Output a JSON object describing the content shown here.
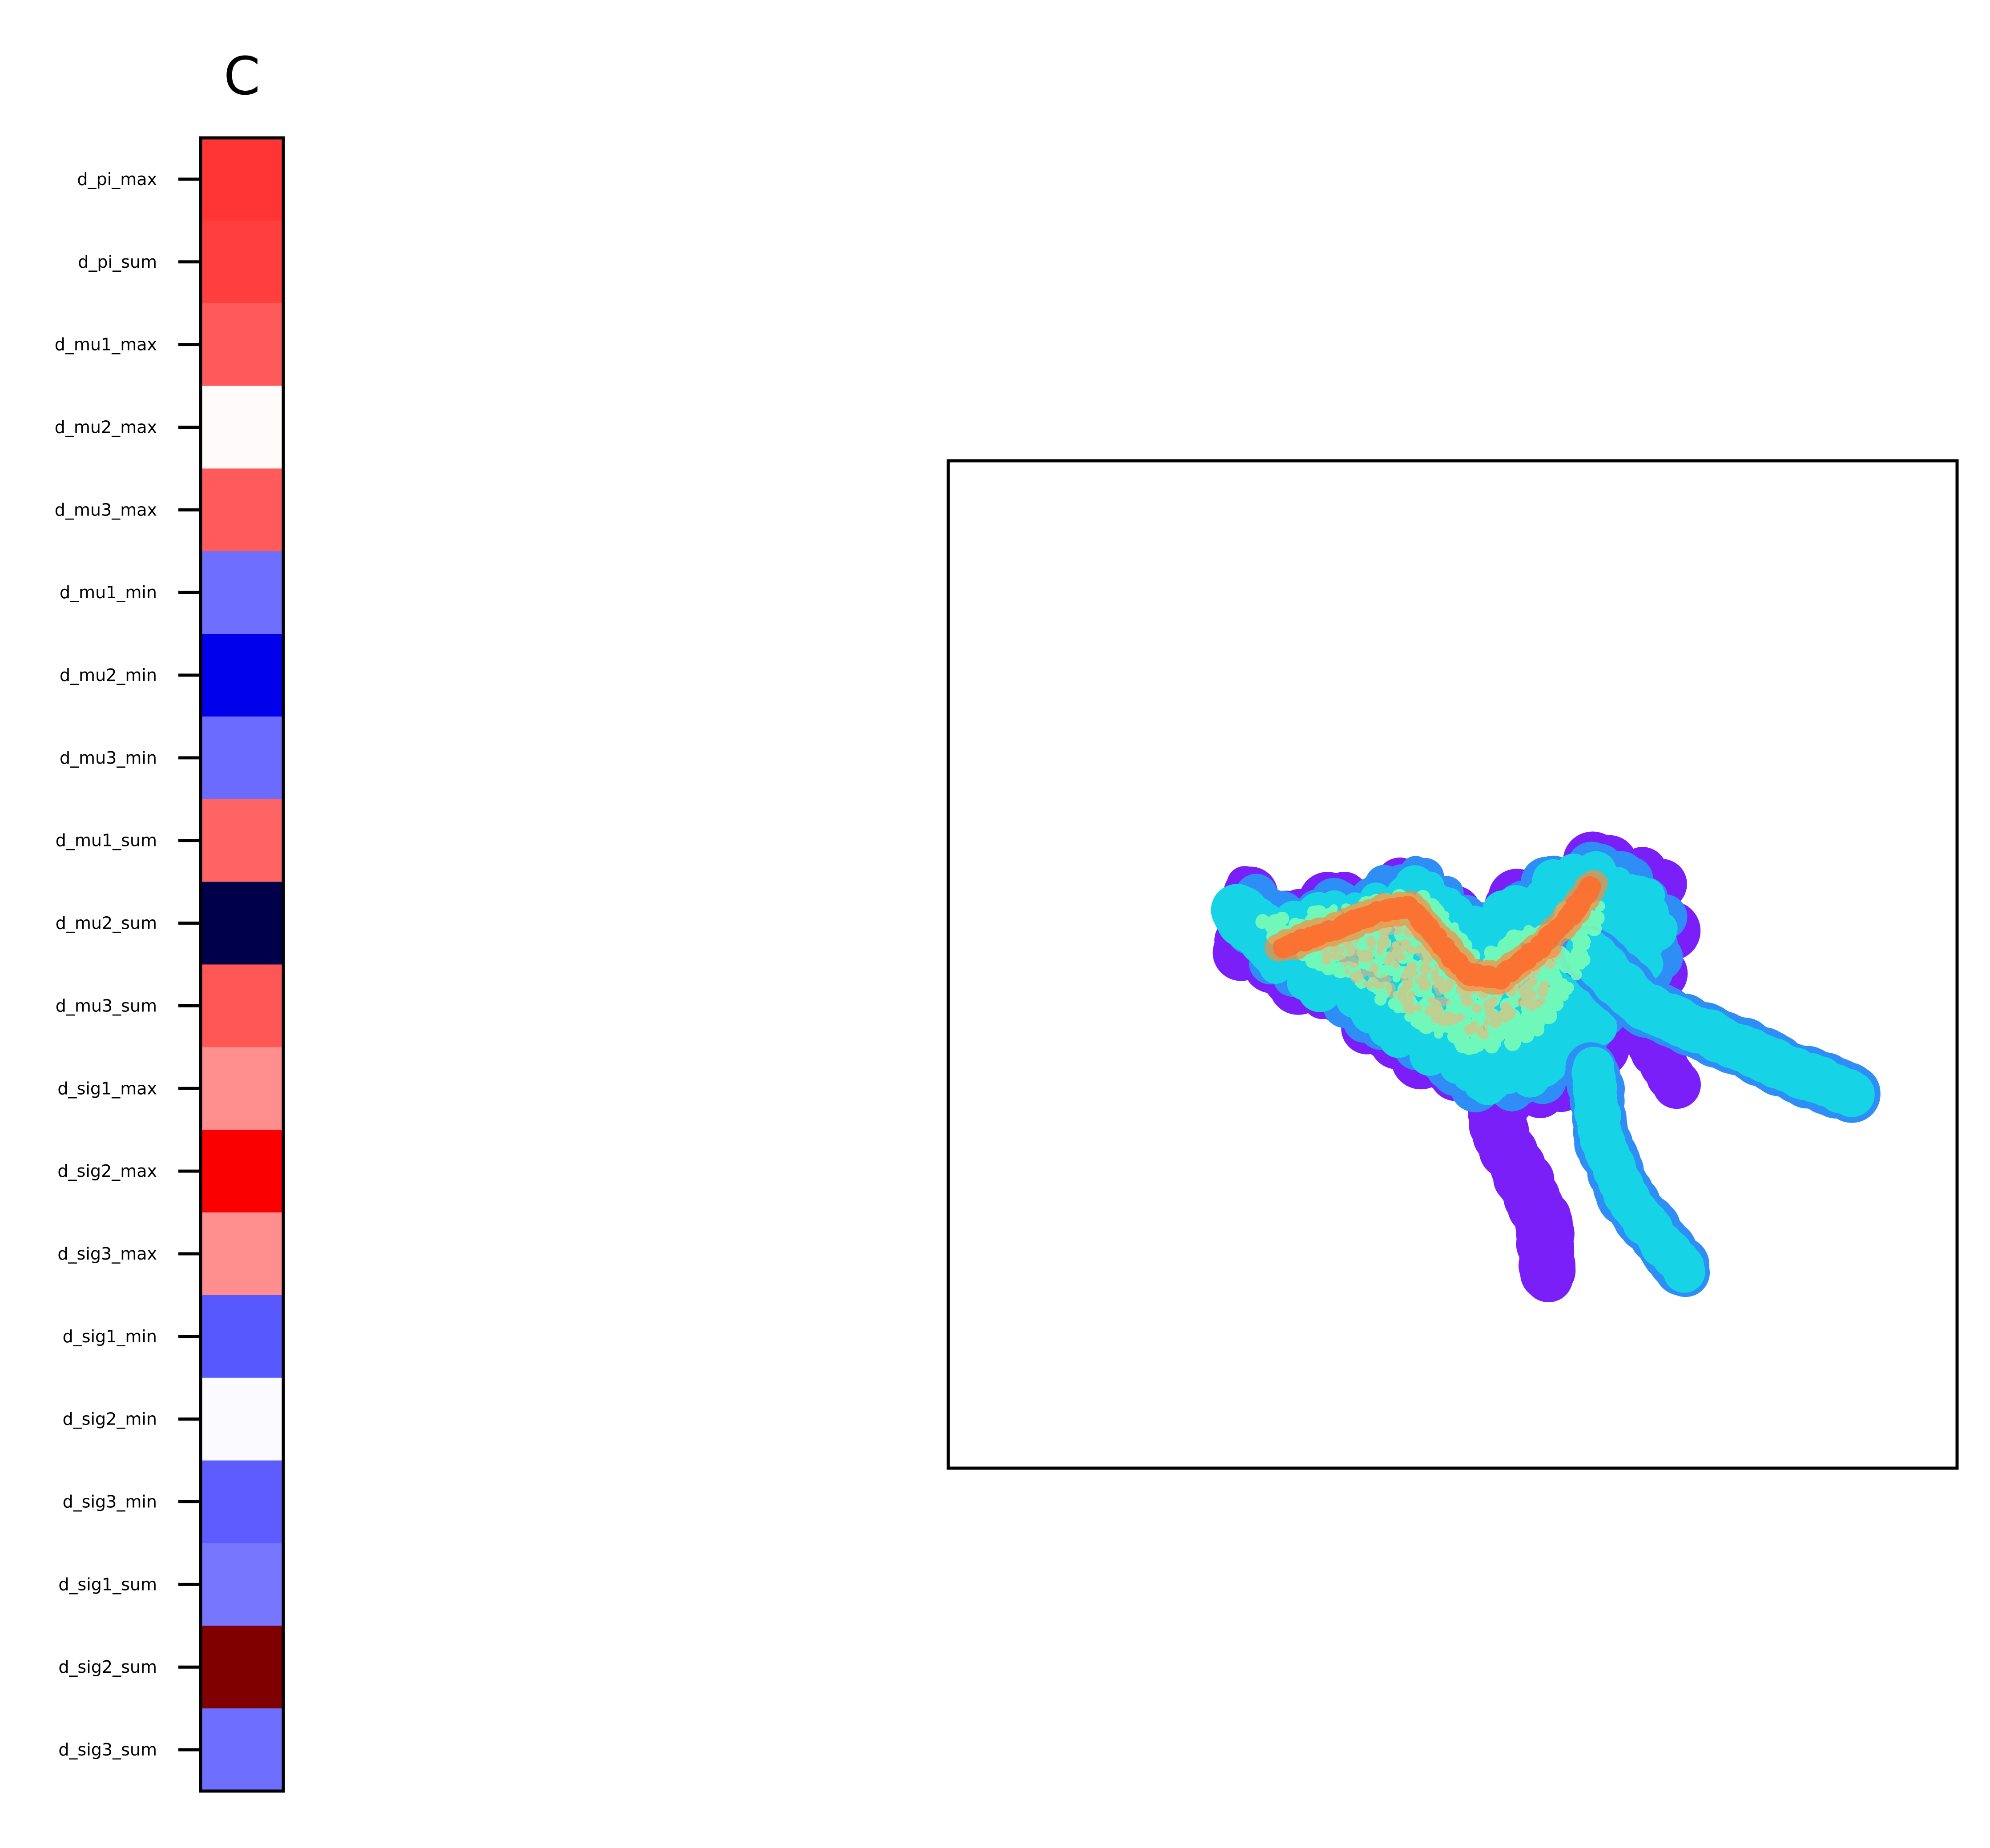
{
  "chart_data": [
    {
      "type": "heatmap",
      "title": "C",
      "categories": [
        "d_pi_max",
        "d_pi_sum",
        "d_mu1_max",
        "d_mu2_max",
        "d_mu3_max",
        "d_mu1_min",
        "d_mu2_min",
        "d_mu3_min",
        "d_mu1_sum",
        "d_mu2_sum",
        "d_mu3_sum",
        "d_sig1_max",
        "d_sig2_max",
        "d_sig3_max",
        "d_sig1_min",
        "d_sig2_min",
        "d_sig3_min",
        "d_sig1_sum",
        "d_sig2_sum",
        "d_sig3_sum"
      ],
      "colors": [
        "#ff3535",
        "#ff3e3e",
        "#ff5a5a",
        "#fffbfb",
        "#ff5b5b",
        "#6e6eff",
        "#0000ea",
        "#6b6bff",
        "#ff6464",
        "#00004a",
        "#ff5656",
        "#ff8f8f",
        "#fa0000",
        "#ff8f8f",
        "#5858ff",
        "#fbfbff",
        "#5c5cff",
        "#7676ff",
        "#800000",
        "#6e6eff"
      ],
      "colormap": "seismic",
      "grid": false,
      "legend": "none"
    },
    {
      "type": "scatter",
      "colormap": "rainbow",
      "axes_ticks": false,
      "colors": {
        "low": "#7a1ff8",
        "mid_low": "#2e8ef5",
        "mid": "#16d4e6",
        "mid_high": "#80ffb4",
        "high": "#ff2a0e"
      }
    }
  ]
}
